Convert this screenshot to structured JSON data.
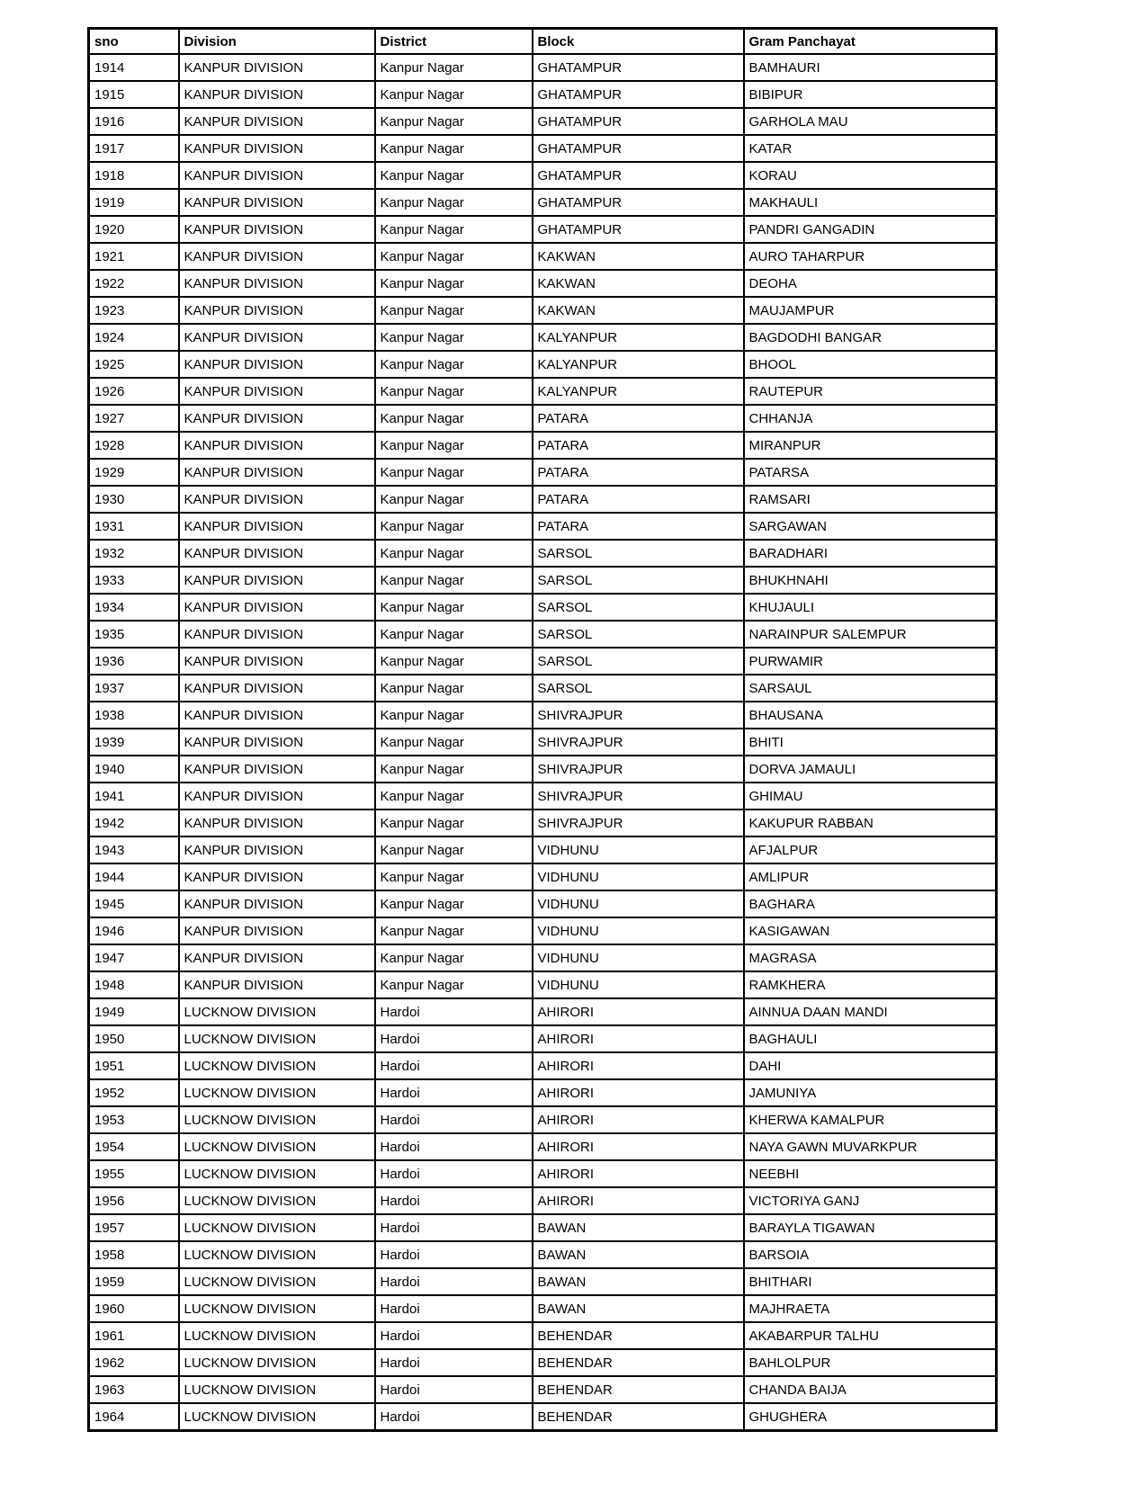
{
  "table": {
    "columns": [
      "sno",
      "Division",
      "District",
      "Block",
      "Gram Panchayat"
    ],
    "rows": [
      [
        "1914",
        "KANPUR DIVISION",
        "Kanpur Nagar",
        "GHATAMPUR",
        "BAMHAURI"
      ],
      [
        "1915",
        "KANPUR DIVISION",
        "Kanpur Nagar",
        "GHATAMPUR",
        "BIBIPUR"
      ],
      [
        "1916",
        "KANPUR DIVISION",
        "Kanpur Nagar",
        "GHATAMPUR",
        "GARHOLA MAU"
      ],
      [
        "1917",
        "KANPUR DIVISION",
        "Kanpur Nagar",
        "GHATAMPUR",
        "KATAR"
      ],
      [
        "1918",
        "KANPUR DIVISION",
        "Kanpur Nagar",
        "GHATAMPUR",
        "KORAU"
      ],
      [
        "1919",
        "KANPUR DIVISION",
        "Kanpur Nagar",
        "GHATAMPUR",
        "MAKHAULI"
      ],
      [
        "1920",
        "KANPUR DIVISION",
        "Kanpur Nagar",
        "GHATAMPUR",
        "PANDRI GANGADIN"
      ],
      [
        "1921",
        "KANPUR DIVISION",
        "Kanpur Nagar",
        "KAKWAN",
        "AURO TAHARPUR"
      ],
      [
        "1922",
        "KANPUR DIVISION",
        "Kanpur Nagar",
        "KAKWAN",
        "DEOHA"
      ],
      [
        "1923",
        "KANPUR DIVISION",
        "Kanpur Nagar",
        "KAKWAN",
        "MAUJAMPUR"
      ],
      [
        "1924",
        "KANPUR DIVISION",
        "Kanpur Nagar",
        "KALYANPUR",
        "BAGDODHI BANGAR"
      ],
      [
        "1925",
        "KANPUR DIVISION",
        "Kanpur Nagar",
        "KALYANPUR",
        "BHOOL"
      ],
      [
        "1926",
        "KANPUR DIVISION",
        "Kanpur Nagar",
        "KALYANPUR",
        "RAUTEPUR"
      ],
      [
        "1927",
        "KANPUR DIVISION",
        "Kanpur Nagar",
        "PATARA",
        "CHHANJA"
      ],
      [
        "1928",
        "KANPUR DIVISION",
        "Kanpur Nagar",
        "PATARA",
        "MIRANPUR"
      ],
      [
        "1929",
        "KANPUR DIVISION",
        "Kanpur Nagar",
        "PATARA",
        "PATARSA"
      ],
      [
        "1930",
        "KANPUR DIVISION",
        "Kanpur Nagar",
        "PATARA",
        "RAMSARI"
      ],
      [
        "1931",
        "KANPUR DIVISION",
        "Kanpur Nagar",
        "PATARA",
        "SARGAWAN"
      ],
      [
        "1932",
        "KANPUR DIVISION",
        "Kanpur Nagar",
        "SARSOL",
        "BARADHARI"
      ],
      [
        "1933",
        "KANPUR DIVISION",
        "Kanpur Nagar",
        "SARSOL",
        "BHUKHNAHI"
      ],
      [
        "1934",
        "KANPUR DIVISION",
        "Kanpur Nagar",
        "SARSOL",
        "KHUJAULI"
      ],
      [
        "1935",
        "KANPUR DIVISION",
        "Kanpur Nagar",
        "SARSOL",
        "NARAINPUR SALEMPUR"
      ],
      [
        "1936",
        "KANPUR DIVISION",
        "Kanpur Nagar",
        "SARSOL",
        "PURWAMIR"
      ],
      [
        "1937",
        "KANPUR DIVISION",
        "Kanpur Nagar",
        "SARSOL",
        "SARSAUL"
      ],
      [
        "1938",
        "KANPUR DIVISION",
        "Kanpur Nagar",
        "SHIVRAJPUR",
        "BHAUSANA"
      ],
      [
        "1939",
        "KANPUR DIVISION",
        "Kanpur Nagar",
        "SHIVRAJPUR",
        "BHITI"
      ],
      [
        "1940",
        "KANPUR DIVISION",
        "Kanpur Nagar",
        "SHIVRAJPUR",
        "DORVA JAMAULI"
      ],
      [
        "1941",
        "KANPUR DIVISION",
        "Kanpur Nagar",
        "SHIVRAJPUR",
        "GHIMAU"
      ],
      [
        "1942",
        "KANPUR DIVISION",
        "Kanpur Nagar",
        "SHIVRAJPUR",
        "KAKUPUR RABBAN"
      ],
      [
        "1943",
        "KANPUR DIVISION",
        "Kanpur Nagar",
        "VIDHUNU",
        "AFJALPUR"
      ],
      [
        "1944",
        "KANPUR DIVISION",
        "Kanpur Nagar",
        "VIDHUNU",
        "AMLIPUR"
      ],
      [
        "1945",
        "KANPUR DIVISION",
        "Kanpur Nagar",
        "VIDHUNU",
        "BAGHARA"
      ],
      [
        "1946",
        "KANPUR DIVISION",
        "Kanpur Nagar",
        "VIDHUNU",
        "KASIGAWAN"
      ],
      [
        "1947",
        "KANPUR DIVISION",
        "Kanpur Nagar",
        "VIDHUNU",
        "MAGRASA"
      ],
      [
        "1948",
        "KANPUR DIVISION",
        "Kanpur Nagar",
        "VIDHUNU",
        "RAMKHERA"
      ],
      [
        "1949",
        "LUCKNOW DIVISION",
        "Hardoi",
        "AHIRORI",
        "AINNUA DAAN MANDI"
      ],
      [
        "1950",
        "LUCKNOW DIVISION",
        "Hardoi",
        "AHIRORI",
        "BAGHAULI"
      ],
      [
        "1951",
        "LUCKNOW DIVISION",
        "Hardoi",
        "AHIRORI",
        "DAHI"
      ],
      [
        "1952",
        "LUCKNOW DIVISION",
        "Hardoi",
        "AHIRORI",
        "JAMUNIYA"
      ],
      [
        "1953",
        "LUCKNOW DIVISION",
        "Hardoi",
        "AHIRORI",
        "KHERWA KAMALPUR"
      ],
      [
        "1954",
        "LUCKNOW DIVISION",
        "Hardoi",
        "AHIRORI",
        "NAYA GAWN MUVARKPUR"
      ],
      [
        "1955",
        "LUCKNOW DIVISION",
        "Hardoi",
        "AHIRORI",
        "NEEBHI"
      ],
      [
        "1956",
        "LUCKNOW DIVISION",
        "Hardoi",
        "AHIRORI",
        "VICTORIYA GANJ"
      ],
      [
        "1957",
        "LUCKNOW DIVISION",
        "Hardoi",
        "BAWAN",
        "BARAYLA TIGAWAN"
      ],
      [
        "1958",
        "LUCKNOW DIVISION",
        "Hardoi",
        "BAWAN",
        "BARSOIA"
      ],
      [
        "1959",
        "LUCKNOW DIVISION",
        "Hardoi",
        "BAWAN",
        "BHITHARI"
      ],
      [
        "1960",
        "LUCKNOW DIVISION",
        "Hardoi",
        "BAWAN",
        "MAJHRAETA"
      ],
      [
        "1961",
        "LUCKNOW DIVISION",
        "Hardoi",
        "BEHENDAR",
        "AKABARPUR TALHU"
      ],
      [
        "1962",
        "LUCKNOW DIVISION",
        "Hardoi",
        "BEHENDAR",
        "BAHLOLPUR"
      ],
      [
        "1963",
        "LUCKNOW DIVISION",
        "Hardoi",
        "BEHENDAR",
        "CHANDA BAIJA"
      ],
      [
        "1964",
        "LUCKNOW DIVISION",
        "Hardoi",
        "BEHENDAR",
        "GHUGHERA"
      ]
    ]
  },
  "colors": {
    "border": "#000000",
    "text": "#000000",
    "background": "#ffffff"
  }
}
